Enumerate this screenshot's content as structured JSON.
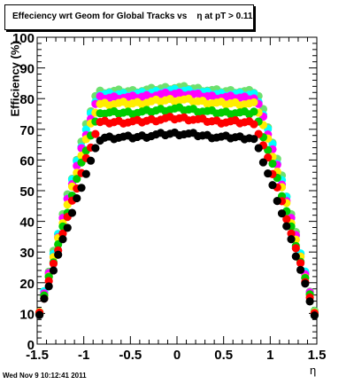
{
  "chart_data": {
    "type": "scatter",
    "title": "Effeciency wrt Geom for Global Tracks vs    η at pT > 0.11",
    "xlabel": "η",
    "ylabel": "Efficiency (%)",
    "xlim": [
      -1.5,
      1.5
    ],
    "ylim": [
      0,
      100
    ],
    "x_ticks": [
      "-1.5",
      "-1",
      "-0.5",
      "0",
      "0.5",
      "1",
      "1.5"
    ],
    "y_ticks": [
      "0",
      "10",
      "20",
      "30",
      "40",
      "50",
      "60",
      "70",
      "80",
      "90",
      "100"
    ],
    "plateaus": [
      {
        "color": "#000000",
        "plateau": 68,
        "edge_shift": 0.0
      },
      {
        "color": "#ff0000",
        "plateau": 73,
        "edge_shift": 0.01
      },
      {
        "color": "#00cc00",
        "plateau": 76,
        "edge_shift": 0.02
      },
      {
        "color": "#ffee00",
        "plateau": 79,
        "edge_shift": 0.03
      },
      {
        "color": "#ff00ff",
        "plateau": 81,
        "edge_shift": 0.035
      },
      {
        "color": "#00ffff",
        "plateau": 82,
        "edge_shift": 0.04
      },
      {
        "color": "#6ee06e",
        "plateau": 83,
        "edge_shift": 0.045
      }
    ]
  },
  "footer": "Wed Nov  9 10:12:41 2011"
}
